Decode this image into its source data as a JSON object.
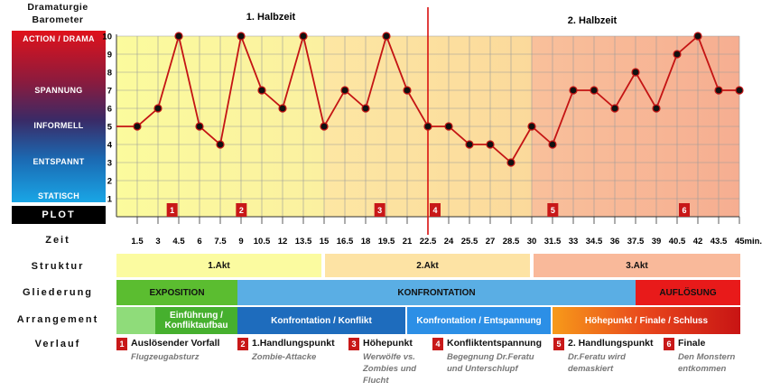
{
  "sidebar": {
    "title_line1": "Dramaturgie",
    "title_line2": "Barometer",
    "levels": [
      "ACTION / DRAMA",
      "SPANNUNG",
      "INFORMELL",
      "ENTSPANNT",
      "STATISCH"
    ],
    "plot_label": "PLOT"
  },
  "colors": {
    "half1_a": "#fbfb9d",
    "half1_b": "#fde7a3",
    "half2_a": "#fde7a3",
    "half2_b": "#f7b493",
    "line": "#c41414",
    "marker": "#c41414",
    "divider": "#d81010",
    "exposition": "#5ac02e",
    "konfrontation": "#5aaee4",
    "aufloesung": "#e81818"
  },
  "chart_data": {
    "type": "line",
    "title_left": "1. Halbzeit",
    "title_right": "2. Halbzeit",
    "xlabel": "Zeit",
    "x_unit": "min.",
    "ylim": [
      0,
      10
    ],
    "y_ticks": [
      "1",
      "2",
      "3",
      "4",
      "5",
      "6",
      "7",
      "8",
      "9",
      "10"
    ],
    "x_ticks": [
      "1.5",
      "3",
      "4.5",
      "6",
      "7.5",
      "9",
      "10.5",
      "12",
      "13.5",
      "15",
      "16.5",
      "18",
      "19.5",
      "21",
      "22.5",
      "24",
      "25.5",
      "27",
      "28.5",
      "30",
      "31.5",
      "33",
      "34.5",
      "36",
      "37.5",
      "39",
      "40.5",
      "42",
      "43.5",
      "45"
    ],
    "x_end_label": "45min.",
    "x": [
      0,
      1.5,
      3,
      4.5,
      6,
      7.5,
      9,
      10.5,
      12,
      13.5,
      15,
      16.5,
      18,
      19.5,
      21,
      22.5,
      24,
      25.5,
      27,
      28.5,
      30,
      31.5,
      33,
      34.5,
      36,
      37.5,
      39,
      40.5,
      42,
      43.5,
      45
    ],
    "values": [
      5,
      5,
      6,
      10,
      5,
      4,
      10,
      7,
      6,
      10,
      5,
      7,
      6,
      10,
      7,
      5,
      5,
      4,
      4,
      3,
      5,
      4,
      7,
      7,
      6,
      8,
      6,
      9,
      10,
      7,
      7
    ],
    "regions": [
      [
        0,
        15
      ],
      [
        15,
        30
      ],
      [
        30,
        45
      ]
    ],
    "halftime": 22.5,
    "plot_markers": [
      {
        "label": "1",
        "x": 3.5
      },
      {
        "label": "2",
        "x": 8.5
      },
      {
        "label": "3",
        "x": 18.5
      },
      {
        "label": "4",
        "x": 22.5
      },
      {
        "label": "5",
        "x": 31
      },
      {
        "label": "6",
        "x": 40.5
      }
    ],
    "grid": true
  },
  "rows": {
    "zeit": "Zeit",
    "struktur": "Struktur",
    "gliederung": "Gliederung",
    "arrangement": "Arrangement",
    "verlauf": "Verlauf"
  },
  "struktur": [
    "1.Akt",
    "2.Akt",
    "3.Akt"
  ],
  "gliederung": [
    "EXPOSITION",
    "KONFRONTATION",
    "AUFLÖSUNG"
  ],
  "arrangement": [
    "Einführung / Konfliktaufbau",
    "Konfrontation / Konflikt",
    "Konfrontation / Entspannung",
    "Höhepunkt / Finale / Schluss"
  ],
  "verlauf": [
    {
      "num": "1",
      "title": "Auslösender Vorfall",
      "sub": "Flugzeugabsturz"
    },
    {
      "num": "2",
      "title": "1.Handlungspunkt",
      "sub": "Zombie-Attacke"
    },
    {
      "num": "3",
      "title": "Höhepunkt",
      "sub": "Werwölfe vs. Zombies und Flucht"
    },
    {
      "num": "4",
      "title": "Konfliktentspannung",
      "sub": "Begegnung Dr.Feratu und Unterschlupf"
    },
    {
      "num": "5",
      "title": "2. Handlungspunkt",
      "sub": "Dr.Feratu wird demaskiert"
    },
    {
      "num": "6",
      "title": "Finale",
      "sub": "Den Monstern entkommen"
    }
  ]
}
